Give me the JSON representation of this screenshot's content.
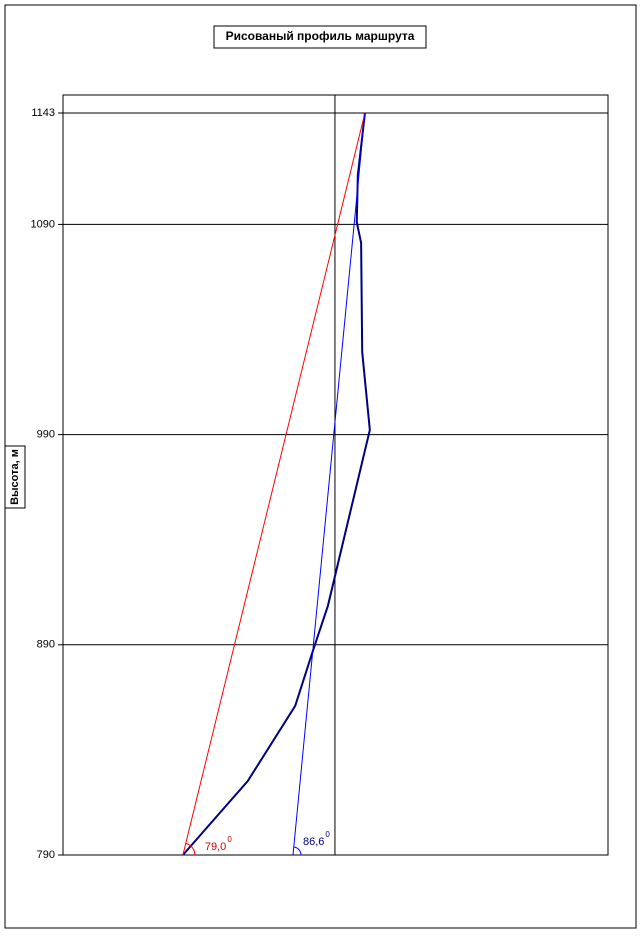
{
  "chart_data": {
    "type": "line",
    "title": "Рисованый профиль маршрута",
    "y_label": "Высота, м",
    "xlim": [
      0,
      100
    ],
    "ylim": [
      790,
      1143
    ],
    "yticks": [
      790,
      890,
      990,
      1090,
      1143
    ],
    "grid": true,
    "vline": 49.9,
    "series": [
      {
        "color": "#000080",
        "x": [
          22.0,
          33.9,
          42.6,
          45.9,
          48.6,
          56.3,
          54.9,
          54.7,
          53.9,
          54.1,
          55.4
        ],
        "values": [
          790,
          825.2,
          860.9,
          887.5,
          908.5,
          992.2,
          1029.3,
          1081.2,
          1091.1,
          1113.5,
          1143
        ]
      },
      {
        "color": "#ff0000",
        "x": [
          22.0,
          55.4
        ],
        "values": [
          790,
          1143
        ]
      },
      {
        "color": "#0000ff",
        "x": [
          42.2,
          55.4
        ],
        "values": [
          790,
          1143
        ]
      }
    ],
    "annotations": [
      {
        "text": "79,0",
        "sup": "0",
        "color": "#cc0000"
      },
      {
        "text": "86,6",
        "sup": "0",
        "color": "#000080"
      }
    ]
  }
}
